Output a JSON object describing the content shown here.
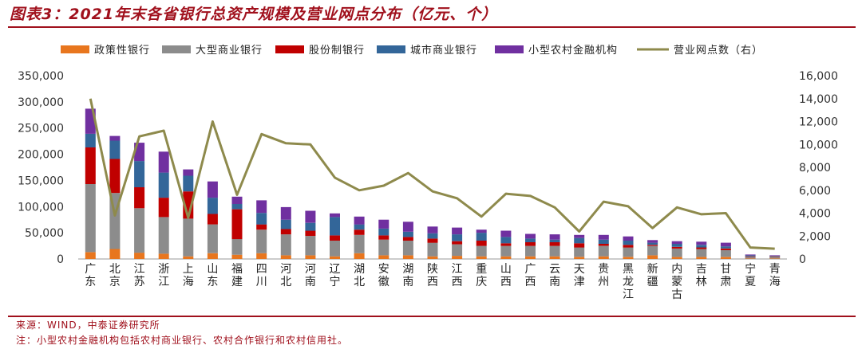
{
  "title": "图表3：2021年末各省银行总资产规模及营业网点分布（亿元、个）",
  "source": "来源：WIND，中泰证券研究所",
  "footnote": "注：小型农村金融机构包括农村商业银行、农村合作银行和农村信用社。",
  "chart_data": {
    "type": "bar",
    "stacked": true,
    "categories": [
      "广东",
      "北京",
      "江苏",
      "浙江",
      "上海",
      "山东",
      "福建",
      "四川",
      "河北",
      "河南",
      "辽宁",
      "湖北",
      "安徽",
      "湖南",
      "陕西",
      "江西",
      "重庆",
      "山西",
      "广西",
      "云南",
      "天津",
      "贵州",
      "黑龙江",
      "新疆",
      "内蒙古",
      "吉林",
      "甘肃",
      "宁夏",
      "青海"
    ],
    "series": [
      {
        "name": "政策性银行",
        "color": "#e8761e",
        "values": [
          13000,
          19000,
          12000,
          10000,
          5000,
          11000,
          8000,
          11000,
          7000,
          7000,
          5000,
          11000,
          7000,
          7000,
          5000,
          6000,
          5000,
          5000,
          5000,
          5000,
          4000,
          5000,
          4000,
          7000,
          4000,
          4000,
          4000,
          1000,
          1000
        ]
      },
      {
        "name": "大型商业银行",
        "color": "#8c8c8c",
        "values": [
          130000,
          107000,
          85000,
          70000,
          72000,
          55000,
          30000,
          45000,
          40000,
          37000,
          30000,
          35000,
          30000,
          28000,
          26000,
          22000,
          20000,
          20000,
          20000,
          20000,
          18000,
          20000,
          18000,
          18000,
          16000,
          15000,
          13000,
          3000,
          3000
        ]
      },
      {
        "name": "股份制银行",
        "color": "#c00000",
        "values": [
          70000,
          65000,
          40000,
          37000,
          52000,
          20000,
          57000,
          10000,
          10000,
          10000,
          10000,
          10000,
          8000,
          7000,
          8000,
          6000,
          10000,
          5000,
          7000,
          7000,
          8000,
          4000,
          5000,
          2000,
          3000,
          3000,
          3000,
          1000,
          1000
        ]
      },
      {
        "name": "城市商业银行",
        "color": "#336699",
        "values": [
          26000,
          35000,
          50000,
          48000,
          30000,
          31000,
          10000,
          22000,
          18000,
          15000,
          35000,
          10000,
          13000,
          10000,
          10000,
          13000,
          15000,
          12000,
          7000,
          5000,
          10000,
          8000,
          8000,
          4000,
          6000,
          5000,
          4000,
          2000,
          1000
        ]
      },
      {
        "name": "小型农村金融机构",
        "color": "#7030a0",
        "values": [
          48000,
          9000,
          35000,
          40000,
          12000,
          31000,
          14000,
          24000,
          24000,
          23000,
          7000,
          15000,
          17000,
          19000,
          13000,
          13000,
          6000,
          12000,
          9000,
          10000,
          6000,
          9000,
          8000,
          5000,
          5000,
          6000,
          7000,
          1500,
          1000
        ]
      }
    ],
    "line": {
      "name": "营业网点数（右）",
      "color": "#8e8a4c",
      "values": [
        14000,
        3800,
        10700,
        11200,
        3600,
        12000,
        5600,
        10900,
        10100,
        10000,
        7100,
        6000,
        6400,
        7500,
        5900,
        5300,
        3700,
        5700,
        5500,
        4500,
        2400,
        5000,
        4600,
        2700,
        4500,
        3900,
        4000,
        1000,
        900
      ]
    },
    "ylim": [
      0,
      350000
    ],
    "yticks": [
      "0",
      "50,000",
      "100,000",
      "150,000",
      "200,000",
      "250,000",
      "300,000",
      "350,000"
    ],
    "y2lim": [
      0,
      16000
    ],
    "y2ticks": [
      "0",
      "2,000",
      "4,000",
      "6,000",
      "8,000",
      "10,000",
      "12,000",
      "14,000",
      "16,000"
    ],
    "legend_position": "top"
  }
}
